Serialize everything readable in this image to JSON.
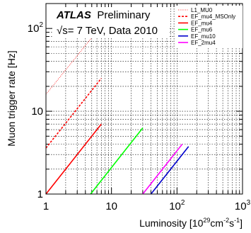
{
  "annotation": {
    "brand": "ATLAS",
    "status": "Preliminary",
    "energy": "√s= 7 TeV, Data 2010"
  },
  "chart_data": {
    "type": "line",
    "ylabel": "Muon trigger rate [Hz]",
    "xlabel_base": "Luminosity [10",
    "xlabel_exp1": "29",
    "xlabel_mid": "cm",
    "xlabel_exp2": "-2",
    "xlabel_mid2": "s",
    "xlabel_exp3": "-1",
    "xlabel_end": "]",
    "x_scale": "log",
    "y_scale": "log",
    "xlim": [
      1,
      1000
    ],
    "ylim": [
      1,
      200
    ],
    "grid": true,
    "legend_position": "top-right",
    "x_ticks": [
      {
        "value": 1,
        "base": "1",
        "exp": ""
      },
      {
        "value": 10,
        "base": "10",
        "exp": ""
      },
      {
        "value": 100,
        "base": "10",
        "exp": "2"
      },
      {
        "value": 1000,
        "base": "10",
        "exp": "3"
      }
    ],
    "y_ticks": [
      {
        "value": 1,
        "base": "1",
        "exp": ""
      },
      {
        "value": 10,
        "base": "10",
        "exp": ""
      },
      {
        "value": 100,
        "base": "10",
        "exp": "2"
      }
    ],
    "series": [
      {
        "name": "L1_MU0",
        "color": "#ff0000",
        "style": "dotted",
        "width": 0.8,
        "x": [
          1,
          6.5
        ],
        "y": [
          16,
          100
        ]
      },
      {
        "name": "EF_mu4_MSOnly",
        "color": "#ff0000",
        "style": "dashed",
        "width": 1.6,
        "x": [
          1,
          7
        ],
        "y": [
          3.6,
          25
        ]
      },
      {
        "name": "EF_mu4",
        "color": "#ff0000",
        "style": "solid",
        "width": 1.6,
        "x": [
          1,
          7
        ],
        "y": [
          1,
          7
        ]
      },
      {
        "name": "EF_mu6",
        "color": "#00ff00",
        "style": "solid",
        "width": 1.6,
        "x": [
          4.8,
          30
        ],
        "y": [
          1,
          6.3
        ]
      },
      {
        "name": "EF_mu10",
        "color": "#0000cc",
        "style": "solid",
        "width": 1.6,
        "x": [
          40,
          150
        ],
        "y": [
          1,
          3.75
        ]
      },
      {
        "name": "EF_2mu4",
        "color": "#ff00ff",
        "style": "solid",
        "width": 1.6,
        "x": [
          30,
          120
        ],
        "y": [
          1,
          4
        ]
      }
    ]
  }
}
